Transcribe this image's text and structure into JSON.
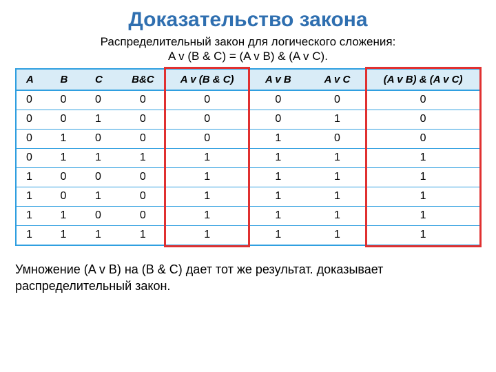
{
  "title": {
    "text": "Доказательство закона",
    "color": "#2f6fb0"
  },
  "subtitle_line1": "Распределительный закон для логического сложения:",
  "subtitle_line2": "A v (B & C) = (A v B) & (A v C).",
  "table": {
    "border_color": "#2f9fe0",
    "header_bg": "#d9ecf7",
    "columns": [
      "A",
      "B",
      "C",
      "B&C",
      "A v (B & C)",
      "A v B",
      "A v C",
      "(A v B) & (A v C)"
    ],
    "rows": [
      [
        "0",
        "0",
        "0",
        "0",
        "0",
        "0",
        "0",
        "0"
      ],
      [
        "0",
        "0",
        "1",
        "0",
        "0",
        "0",
        "1",
        "0"
      ],
      [
        "0",
        "1",
        "0",
        "0",
        "0",
        "1",
        "0",
        "0"
      ],
      [
        "0",
        "1",
        "1",
        "1",
        "1",
        "1",
        "1",
        "1"
      ],
      [
        "1",
        "0",
        "0",
        "0",
        "1",
        "1",
        "1",
        "1"
      ],
      [
        "1",
        "0",
        "1",
        "0",
        "1",
        "1",
        "1",
        "1"
      ],
      [
        "1",
        "1",
        "0",
        "0",
        "1",
        "1",
        "1",
        "1"
      ],
      [
        "1",
        "1",
        "1",
        "1",
        "1",
        "1",
        "1",
        "1"
      ]
    ],
    "highlight_color": "#e03030",
    "highlight_cols": [
      4,
      7
    ]
  },
  "caption": {
    "line1_a": "Умножение (A v B) на",
    "line1_garble": "(B & C) дает тот же результат.",
    "line1_b": "      доказывает",
    "line2": "распределительный закон."
  }
}
